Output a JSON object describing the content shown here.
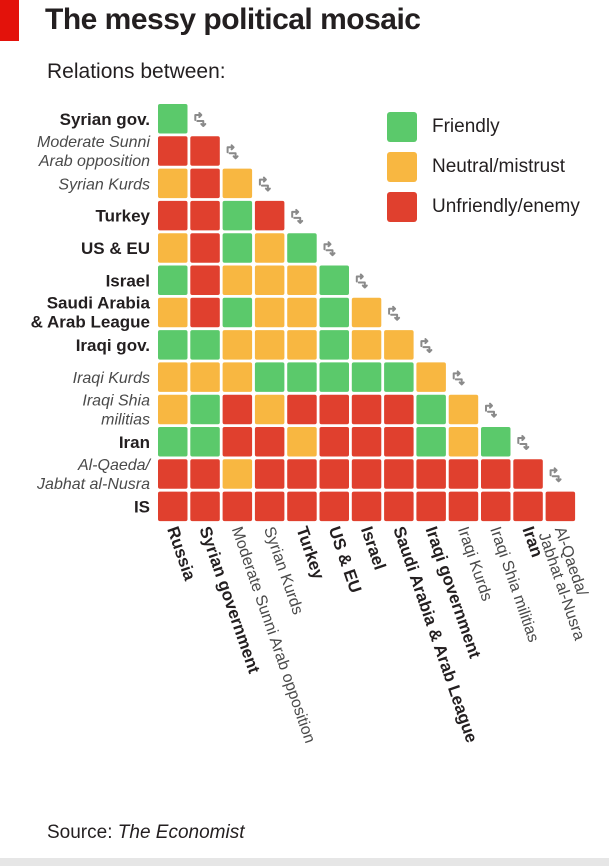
{
  "title": "The messy political mosaic",
  "subtitle": "Relations between:",
  "source": {
    "prefix": "Source: ",
    "name": "The Economist"
  },
  "colors": {
    "friendly": "#5bc96b",
    "neutral": "#f8b741",
    "enemy": "#e0402e",
    "arrow": "#8a8a8a",
    "brand": "#e3120b"
  },
  "legend": [
    {
      "key": "friendly",
      "label": "Friendly"
    },
    {
      "key": "neutral",
      "label": "Neutral/mistrust"
    },
    {
      "key": "enemy",
      "label": "Unfriendly/enemy"
    }
  ],
  "chart_data": {
    "type": "heatmap",
    "title": "The messy political mosaic",
    "subtitle": "Relations between:",
    "value_legend": {
      "F": "Friendly",
      "N": "Neutral/mistrust",
      "E": "Unfriendly/enemy"
    },
    "row_labels": [
      {
        "text": "Syrian gov.",
        "bold": true
      },
      {
        "text": "Moderate Sunni Arab opposition",
        "bold": false,
        "lines": [
          "Moderate Sunni",
          "Arab opposition"
        ]
      },
      {
        "text": "Syrian Kurds",
        "bold": false
      },
      {
        "text": "Turkey",
        "bold": true
      },
      {
        "text": "US & EU",
        "bold": true
      },
      {
        "text": "Israel",
        "bold": true
      },
      {
        "text": "Saudi Arabia & Arab League",
        "bold": true,
        "lines": [
          "Saudi Arabia",
          "& Arab League"
        ]
      },
      {
        "text": "Iraqi gov.",
        "bold": true
      },
      {
        "text": "Iraqi Kurds",
        "bold": false
      },
      {
        "text": "Iraqi Shia militias",
        "bold": false,
        "lines": [
          "Iraqi Shia",
          "militias"
        ]
      },
      {
        "text": "Iran",
        "bold": true
      },
      {
        "text": "Al-Qaeda/ Jabhat al-Nusra",
        "bold": false,
        "lines": [
          "Al-Qaeda/",
          "Jabhat al-Nusra"
        ]
      },
      {
        "text": "IS",
        "bold": true
      }
    ],
    "column_labels": [
      {
        "text": "Russia",
        "bold": true
      },
      {
        "text": "Syrian government",
        "bold": true
      },
      {
        "text": "Moderate Sunni Arab opposition",
        "bold": false
      },
      {
        "text": "Syrian Kurds",
        "bold": false
      },
      {
        "text": "Turkey",
        "bold": true
      },
      {
        "text": "US & EU",
        "bold": true
      },
      {
        "text": "Israel",
        "bold": true
      },
      {
        "text": "Saudi Arabia & Arab League",
        "bold": true
      },
      {
        "text": "Iraqi government",
        "bold": true
      },
      {
        "text": "Iraqi Kurds",
        "bold": false
      },
      {
        "text": "Iraqi Shia militias",
        "bold": false
      },
      {
        "text": "Iran",
        "bold": true
      },
      {
        "text": "Al-Qaeda/ Jabhat al-Nusra",
        "bold": false,
        "lines": [
          "Al-Qaeda/",
          "Jabhat al-Nusra"
        ]
      }
    ],
    "matrix": [
      [
        "F"
      ],
      [
        "E",
        "E"
      ],
      [
        "N",
        "E",
        "N"
      ],
      [
        "E",
        "E",
        "F",
        "E"
      ],
      [
        "N",
        "E",
        "F",
        "N",
        "F"
      ],
      [
        "F",
        "E",
        "N",
        "N",
        "N",
        "F"
      ],
      [
        "N",
        "E",
        "F",
        "N",
        "N",
        "F",
        "N"
      ],
      [
        "F",
        "F",
        "N",
        "N",
        "N",
        "F",
        "N",
        "N"
      ],
      [
        "N",
        "N",
        "N",
        "F",
        "F",
        "F",
        "F",
        "F",
        "N"
      ],
      [
        "N",
        "F",
        "E",
        "N",
        "E",
        "E",
        "E",
        "E",
        "F",
        "N"
      ],
      [
        "F",
        "F",
        "E",
        "E",
        "N",
        "E",
        "E",
        "E",
        "F",
        "N",
        "F"
      ],
      [
        "E",
        "E",
        "N",
        "E",
        "E",
        "E",
        "E",
        "E",
        "E",
        "E",
        "E",
        "E"
      ],
      [
        "E",
        "E",
        "E",
        "E",
        "E",
        "E",
        "E",
        "E",
        "E",
        "E",
        "E",
        "E",
        "E"
      ]
    ]
  }
}
